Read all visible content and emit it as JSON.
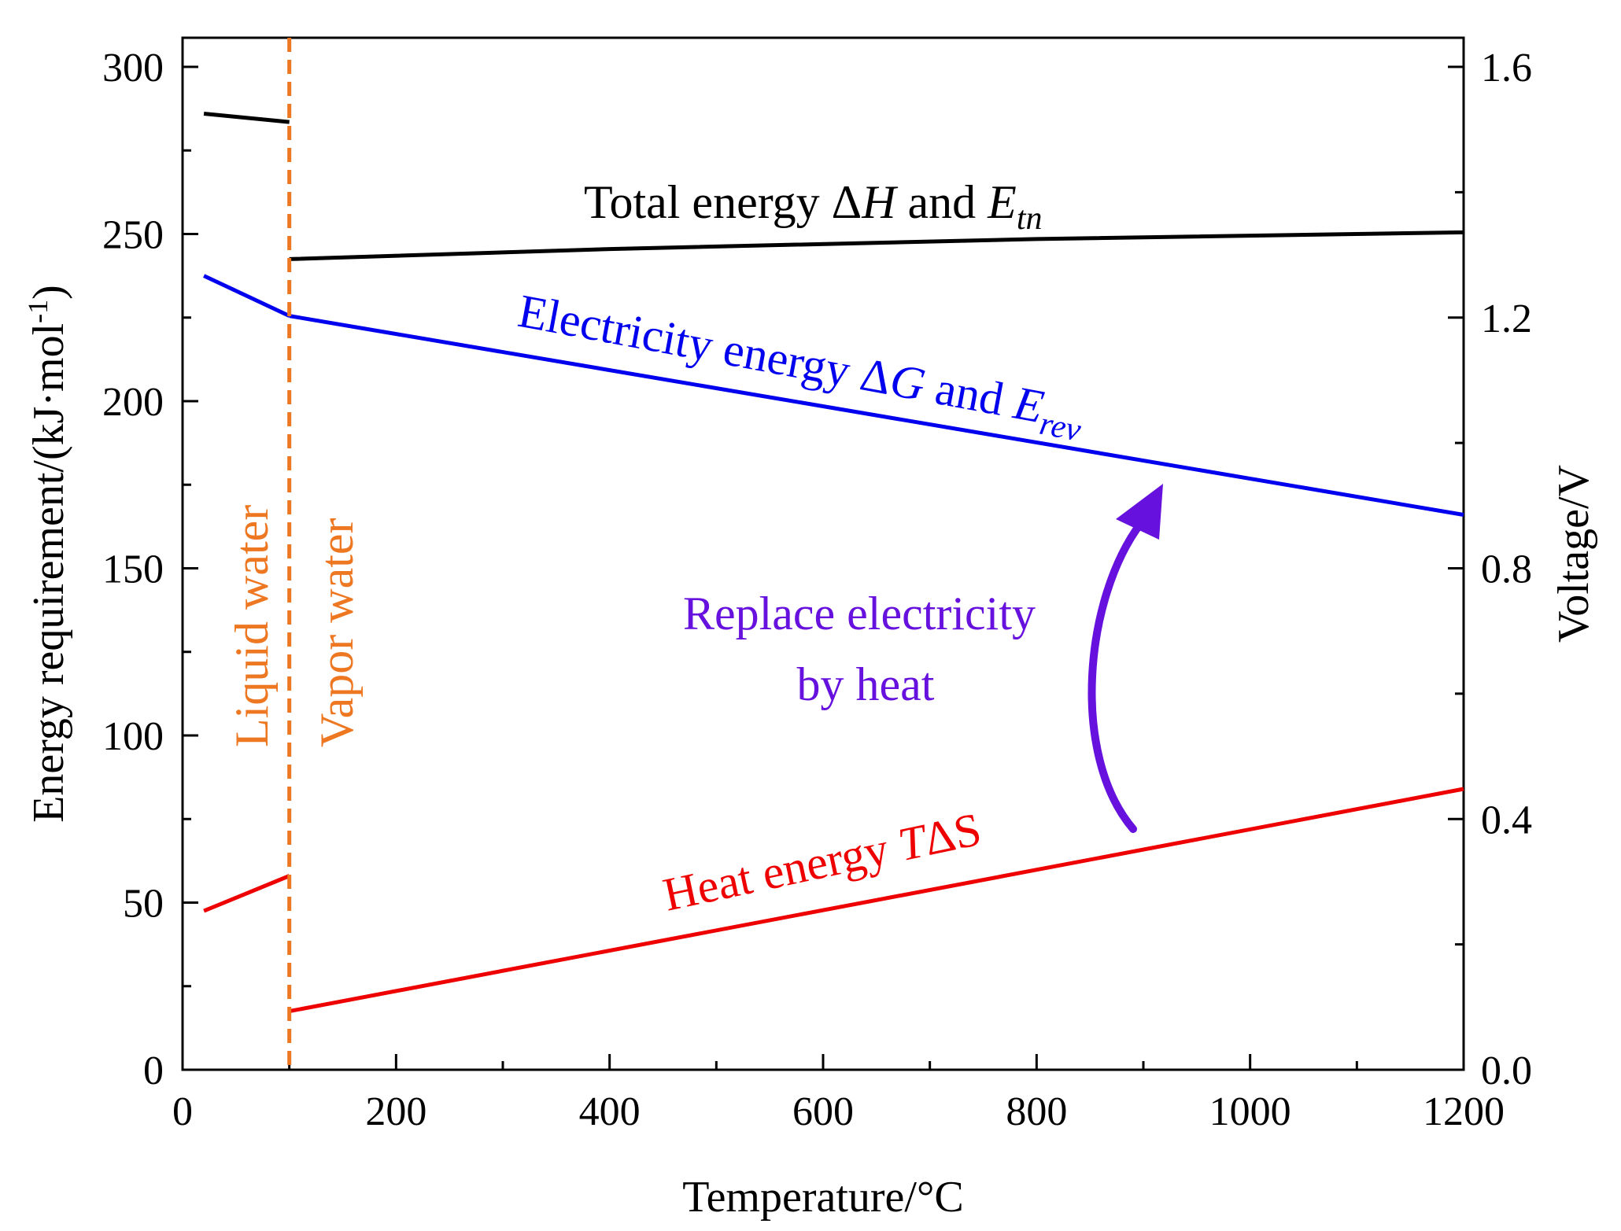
{
  "chart_data": {
    "type": "line",
    "title": "",
    "xlabel": "Temperature/°C",
    "ylabel": {
      "main": "Energy requirement/(kJ·mol",
      "superscript": "-1",
      "close": ")"
    },
    "y2label": "Voltage/V",
    "xlim": [
      0,
      1200
    ],
    "ylim": [
      0,
      310
    ],
    "y2lim": [
      0,
      1.6
    ],
    "xticks": [
      {
        "value": 0,
        "label": "0"
      },
      {
        "value": 200,
        "label": "200"
      },
      {
        "value": 400,
        "label": "400"
      },
      {
        "value": 600,
        "label": "600"
      },
      {
        "value": 800,
        "label": "800"
      },
      {
        "value": 1000,
        "label": "1000"
      },
      {
        "value": 1200,
        "label": "1200"
      }
    ],
    "yticks": [
      {
        "value": 0,
        "label": "0"
      },
      {
        "value": 50,
        "label": "50"
      },
      {
        "value": 100,
        "label": "100"
      },
      {
        "value": 150,
        "label": "150"
      },
      {
        "value": 200,
        "label": "200"
      },
      {
        "value": 250,
        "label": "250"
      },
      {
        "value": 300,
        "label": "300"
      }
    ],
    "y2ticks": [
      {
        "value": 0.0,
        "label": "0.0"
      },
      {
        "value": 0.4,
        "label": "0.4"
      },
      {
        "value": 0.8,
        "label": "0.8"
      },
      {
        "value": 1.2,
        "label": "1.2"
      },
      {
        "value": 1.6,
        "label": "1.6"
      }
    ],
    "series": [
      {
        "name": "Total energy ΔH and E_tn",
        "color": "#000000",
        "segments": [
          {
            "x": [
              20,
              100
            ],
            "y": [
              286,
              283.5
            ]
          },
          {
            "x": [
              100,
              400,
              800,
              1200
            ],
            "y": [
              242.5,
              245.5,
              248.5,
              250.5
            ]
          }
        ]
      },
      {
        "name": "Electricity energy ΔG and E_rev",
        "color": "#0000ee",
        "segments": [
          {
            "x": [
              20,
              100
            ],
            "y": [
              237.5,
              225.5
            ]
          },
          {
            "x": [
              100,
              1200
            ],
            "y": [
              225.5,
              166
            ]
          }
        ]
      },
      {
        "name": "Heat energy TΔS",
        "color": "#ee0000",
        "segments": [
          {
            "x": [
              20,
              100
            ],
            "y": [
              47.5,
              58
            ]
          },
          {
            "x": [
              100,
              1200
            ],
            "y": [
              17.5,
              84
            ]
          }
        ]
      }
    ],
    "phase_boundary": {
      "x": 100,
      "color": "#ee7722"
    },
    "annotations": {
      "total": {
        "prefix": "Total energy Δ",
        "italic": "H",
        "mid": " and ",
        "base": "E",
        "sub": "tn",
        "color": "#000000"
      },
      "electricity": {
        "prefix": "Electricity energy Δ",
        "italic": "G",
        "mid": " and ",
        "base": "E",
        "sub": "rev",
        "color": "#0000ee"
      },
      "heat": {
        "prefix": "Heat energy ",
        "italic": "T",
        "suffix": "ΔS",
        "color": "#ee0000"
      },
      "replace": {
        "line1": "Replace electricity",
        "line2": "by heat",
        "color": "#6611dd"
      },
      "liquid": {
        "text": "Liquid water",
        "color": "#ee7722"
      },
      "vapor": {
        "text": "Vapor water",
        "color": "#ee7722"
      }
    }
  }
}
